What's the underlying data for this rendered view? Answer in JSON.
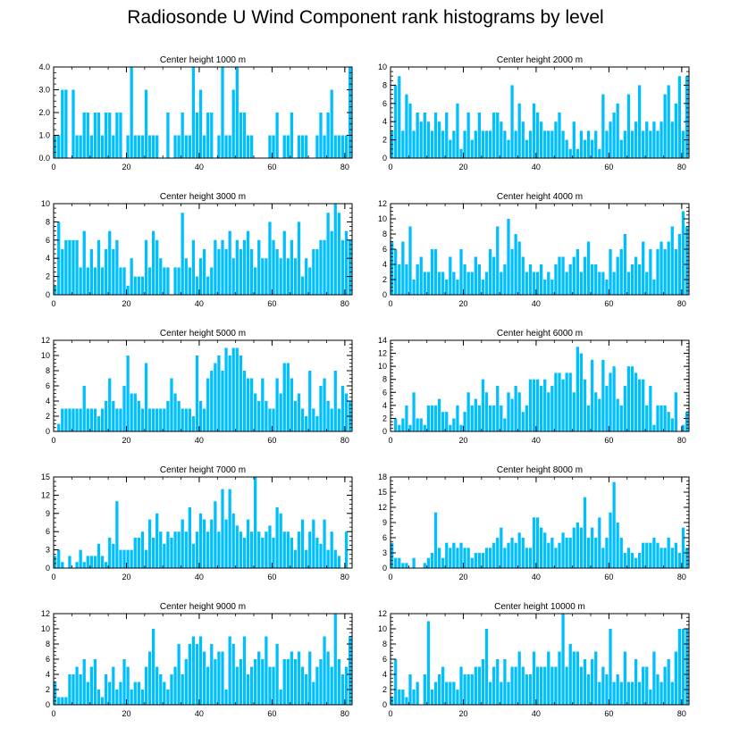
{
  "title": "Radiosonde U Wind Component rank histograms by level",
  "bar_color": "#00BFFF",
  "chart_data": [
    {
      "type": "bar",
      "title": "Center height 1000 m",
      "xlim": [
        0,
        82
      ],
      "ylim": [
        0,
        4
      ],
      "yticks": [
        0,
        1,
        2,
        3,
        4
      ],
      "ytick_labels": [
        "0.0",
        "1.0",
        "2.0",
        "3.0",
        "4.0"
      ],
      "xticks": [
        0,
        20,
        40,
        60,
        80
      ],
      "values": [
        1,
        1,
        3,
        3,
        0,
        3,
        1,
        1,
        2,
        2,
        1,
        2,
        2,
        1,
        2,
        2,
        1,
        2,
        2,
        0,
        1,
        4,
        1,
        1,
        1,
        3,
        1,
        1,
        1,
        0,
        0,
        2,
        0,
        1,
        1,
        2,
        1,
        1,
        4,
        2,
        3,
        1,
        2,
        2,
        0,
        1,
        4,
        1,
        1,
        3,
        4,
        2,
        2,
        1,
        1,
        0,
        0,
        0,
        0,
        1,
        1,
        2,
        0,
        1,
        1,
        2,
        0,
        1,
        1,
        1,
        0,
        0,
        1,
        2,
        1,
        2,
        3,
        1,
        1,
        1,
        1,
        4
      ]
    },
    {
      "type": "bar",
      "title": "Center height 2000 m",
      "xlim": [
        0,
        82
      ],
      "ylim": [
        0,
        10
      ],
      "yticks": [
        0,
        2,
        4,
        6,
        8,
        10
      ],
      "ytick_labels": [
        "0",
        "2",
        "4",
        "6",
        "8",
        "10"
      ],
      "xticks": [
        0,
        20,
        40,
        60,
        80
      ],
      "values": [
        3,
        8,
        9,
        3,
        7,
        6,
        3,
        5,
        4,
        5,
        4,
        3,
        5,
        4,
        3,
        5,
        2,
        3,
        6,
        1,
        3,
        5,
        2,
        3,
        5,
        3,
        3,
        3,
        5,
        5,
        4,
        3,
        2,
        8,
        3,
        6,
        4,
        2,
        3,
        6,
        5,
        4,
        3,
        3,
        3,
        4,
        5,
        3,
        2,
        1,
        4,
        1,
        3,
        2,
        3,
        2,
        3,
        1,
        7,
        3,
        4,
        5,
        6,
        2,
        3,
        7,
        3,
        4,
        8,
        3,
        4,
        3,
        4,
        3,
        4,
        7,
        8,
        4,
        6,
        9,
        3,
        9
      ]
    },
    {
      "type": "bar",
      "title": "Center height 3000 m",
      "xlim": [
        0,
        82
      ],
      "ylim": [
        0,
        10
      ],
      "yticks": [
        0,
        2,
        4,
        6,
        8,
        10
      ],
      "ytick_labels": [
        "0",
        "2",
        "4",
        "6",
        "8",
        "10"
      ],
      "xticks": [
        0,
        20,
        40,
        60,
        80
      ],
      "values": [
        1,
        8,
        5,
        6,
        6,
        6,
        6,
        3,
        7,
        3,
        5,
        3,
        6,
        3,
        5,
        7,
        5,
        6,
        3,
        3,
        1,
        4,
        2,
        2,
        2,
        6,
        3,
        7,
        6,
        4,
        3,
        3,
        0,
        3,
        3,
        9,
        4,
        3,
        6,
        2,
        4,
        5,
        2,
        3,
        6,
        5,
        6,
        5,
        7,
        4,
        6,
        5,
        6,
        7,
        5,
        3,
        6,
        4,
        4,
        8,
        6,
        5,
        4,
        7,
        4,
        6,
        4,
        8,
        2,
        4,
        3,
        5,
        5,
        6,
        6,
        9,
        7,
        10,
        9,
        6,
        7,
        6
      ]
    },
    {
      "type": "bar",
      "title": "Center height 4000 m",
      "xlim": [
        0,
        82
      ],
      "ylim": [
        0,
        12
      ],
      "yticks": [
        0,
        2,
        4,
        6,
        8,
        10,
        12
      ],
      "ytick_labels": [
        "0",
        "2",
        "4",
        "6",
        "8",
        "10",
        "12"
      ],
      "xticks": [
        0,
        20,
        40,
        60,
        80
      ],
      "values": [
        7,
        6,
        4,
        7,
        4,
        9,
        2,
        4,
        5,
        3,
        3,
        6,
        6,
        3,
        3,
        2,
        5,
        3,
        2,
        6,
        4,
        3,
        3,
        5,
        4,
        2,
        3,
        6,
        5,
        9,
        3,
        4,
        10,
        6,
        8,
        7,
        5,
        3,
        4,
        3,
        3,
        4,
        2,
        3,
        2,
        4,
        5,
        5,
        3,
        4,
        5,
        6,
        3,
        5,
        7,
        4,
        4,
        3,
        3,
        2,
        6,
        3,
        5,
        6,
        8,
        3,
        4,
        5,
        4,
        7,
        3,
        6,
        2,
        6,
        7,
        6,
        7,
        9,
        6,
        8,
        11,
        9
      ]
    },
    {
      "type": "bar",
      "title": "Center height 5000 m",
      "xlim": [
        0,
        82
      ],
      "ylim": [
        0,
        12
      ],
      "yticks": [
        0,
        2,
        4,
        6,
        8,
        10,
        12
      ],
      "ytick_labels": [
        "0",
        "2",
        "4",
        "6",
        "8",
        "10",
        "12"
      ],
      "xticks": [
        0,
        20,
        40,
        60,
        80
      ],
      "values": [
        0,
        1,
        3,
        3,
        3,
        3,
        3,
        3,
        6,
        3,
        3,
        3,
        2,
        3,
        4,
        7,
        4,
        3,
        3,
        6,
        10,
        5,
        5,
        4,
        3,
        9,
        3,
        3,
        3,
        3,
        3,
        4,
        7,
        5,
        4,
        3,
        3,
        3,
        2,
        10,
        4,
        3,
        7,
        8,
        9,
        10,
        8,
        11,
        10,
        11,
        11,
        10,
        8,
        7,
        7,
        5,
        4,
        7,
        4,
        3,
        3,
        7,
        5,
        9,
        9,
        7,
        4,
        5,
        3,
        2,
        8,
        3,
        2,
        6,
        7,
        4,
        3,
        8,
        3,
        6,
        5,
        4
      ]
    },
    {
      "type": "bar",
      "title": "Center height 6000 m",
      "xlim": [
        0,
        82
      ],
      "ylim": [
        0,
        14
      ],
      "yticks": [
        0,
        2,
        4,
        6,
        8,
        10,
        12,
        14
      ],
      "ytick_labels": [
        "0",
        "2",
        "4",
        "6",
        "8",
        "10",
        "12",
        "14"
      ],
      "xticks": [
        0,
        20,
        40,
        60,
        80
      ],
      "values": [
        0,
        2,
        1,
        2,
        4,
        1,
        6,
        2,
        2,
        1,
        4,
        4,
        4,
        5,
        3,
        3,
        1,
        2,
        4,
        1,
        3,
        6,
        4,
        5,
        4,
        8,
        6,
        4,
        4,
        7,
        4,
        2,
        6,
        5,
        7,
        6,
        3,
        4,
        8,
        8,
        8,
        7,
        8,
        6,
        7,
        9,
        9,
        8,
        9,
        9,
        6,
        13,
        12,
        8,
        4,
        11,
        6,
        5,
        11,
        7,
        9,
        10,
        5,
        4,
        7,
        10,
        10,
        9,
        8,
        8,
        4,
        7,
        1,
        4,
        4,
        4,
        3,
        2,
        6,
        0,
        1,
        3
      ]
    },
    {
      "type": "bar",
      "title": "Center height 7000 m",
      "xlim": [
        0,
        82
      ],
      "ylim": [
        0,
        15
      ],
      "yticks": [
        0,
        3,
        6,
        9,
        12,
        15
      ],
      "ytick_labels": [
        "0",
        "3",
        "6",
        "9",
        "12",
        "15"
      ],
      "xticks": [
        0,
        20,
        40,
        60,
        80
      ],
      "values": [
        2,
        3,
        1,
        0,
        2,
        0,
        1,
        3,
        1,
        2,
        2,
        2,
        4,
        2,
        1,
        5,
        4,
        11,
        3,
        3,
        3,
        3,
        5,
        5,
        6,
        3,
        8,
        5,
        9,
        6,
        4,
        6,
        5,
        6,
        6,
        8,
        6,
        10,
        4,
        6,
        9,
        8,
        6,
        8,
        11,
        6,
        13,
        8,
        13,
        9,
        7,
        6,
        5,
        8,
        6,
        15,
        6,
        5,
        6,
        7,
        5,
        10,
        9,
        6,
        6,
        5,
        3,
        6,
        8,
        3,
        6,
        8,
        5,
        4,
        8,
        3,
        6,
        3,
        2,
        0,
        6
      ]
    },
    {
      "type": "bar",
      "title": "Center height 8000 m",
      "xlim": [
        0,
        82
      ],
      "ylim": [
        0,
        18
      ],
      "yticks": [
        0,
        3,
        6,
        9,
        12,
        15,
        18
      ],
      "ytick_labels": [
        "0",
        "3",
        "6",
        "9",
        "12",
        "15",
        "18"
      ],
      "xticks": [
        0,
        20,
        40,
        60,
        80
      ],
      "values": [
        5,
        2,
        2,
        1,
        1,
        0,
        2,
        0,
        0,
        1,
        2,
        3,
        11,
        4,
        2,
        5,
        4,
        5,
        4,
        5,
        4,
        4,
        2,
        3,
        3,
        3,
        4,
        4,
        5,
        6,
        8,
        4,
        5,
        6,
        5,
        7,
        6,
        4,
        4,
        10,
        10,
        8,
        7,
        5,
        6,
        4,
        5,
        7,
        6,
        6,
        8,
        9,
        8,
        14,
        6,
        8,
        6,
        10,
        4,
        6,
        11,
        17,
        9,
        6,
        3,
        4,
        3,
        2,
        3,
        5,
        5,
        5,
        6,
        5,
        4,
        4,
        6,
        4,
        5,
        3,
        8,
        4
      ]
    },
    {
      "type": "bar",
      "title": "Center height 9000 m",
      "xlim": [
        0,
        82
      ],
      "ylim": [
        0,
        12
      ],
      "yticks": [
        0,
        2,
        4,
        6,
        8,
        10,
        12
      ],
      "ytick_labels": [
        "0",
        "2",
        "4",
        "6",
        "8",
        "10",
        "12"
      ],
      "xticks": [
        0,
        20,
        40,
        60,
        80
      ],
      "values": [
        3,
        1,
        1,
        1,
        4,
        4,
        5,
        4,
        6,
        3,
        5,
        6,
        2,
        1,
        4,
        3,
        5,
        2,
        3,
        6,
        5,
        2,
        3,
        3,
        2,
        5,
        7,
        10,
        5,
        4,
        3,
        2,
        4,
        5,
        8,
        4,
        6,
        8,
        9,
        8,
        9,
        7,
        5,
        8,
        6,
        7,
        7,
        2,
        9,
        8,
        5,
        6,
        9,
        4,
        5,
        6,
        7,
        6,
        9,
        5,
        5,
        8,
        2,
        6,
        6,
        7,
        6,
        7,
        5,
        4,
        7,
        3,
        5,
        6,
        9,
        7,
        5,
        12,
        6,
        4,
        5,
        9
      ]
    },
    {
      "type": "bar",
      "title": "Center height 10000 m",
      "xlim": [
        0,
        82
      ],
      "ylim": [
        0,
        12
      ],
      "yticks": [
        0,
        2,
        4,
        6,
        8,
        10,
        12
      ],
      "ytick_labels": [
        "0",
        "2",
        "4",
        "6",
        "8",
        "10",
        "12"
      ],
      "xticks": [
        0,
        20,
        40,
        60,
        80
      ],
      "values": [
        1,
        6,
        2,
        2,
        1,
        4,
        2,
        3,
        0,
        4,
        11,
        2,
        3,
        4,
        5,
        3,
        3,
        3,
        2,
        5,
        4,
        4,
        4,
        5,
        5,
        6,
        10,
        3,
        5,
        6,
        3,
        6,
        3,
        5,
        5,
        7,
        5,
        4,
        4,
        7,
        5,
        5,
        5,
        7,
        5,
        5,
        7,
        12,
        5,
        8,
        7,
        7,
        5,
        6,
        4,
        6,
        7,
        3,
        5,
        4,
        10,
        3,
        4,
        3,
        7,
        3,
        3,
        6,
        3,
        5,
        5,
        2,
        7,
        4,
        3,
        5,
        6,
        3,
        7,
        10,
        10,
        10
      ]
    }
  ]
}
